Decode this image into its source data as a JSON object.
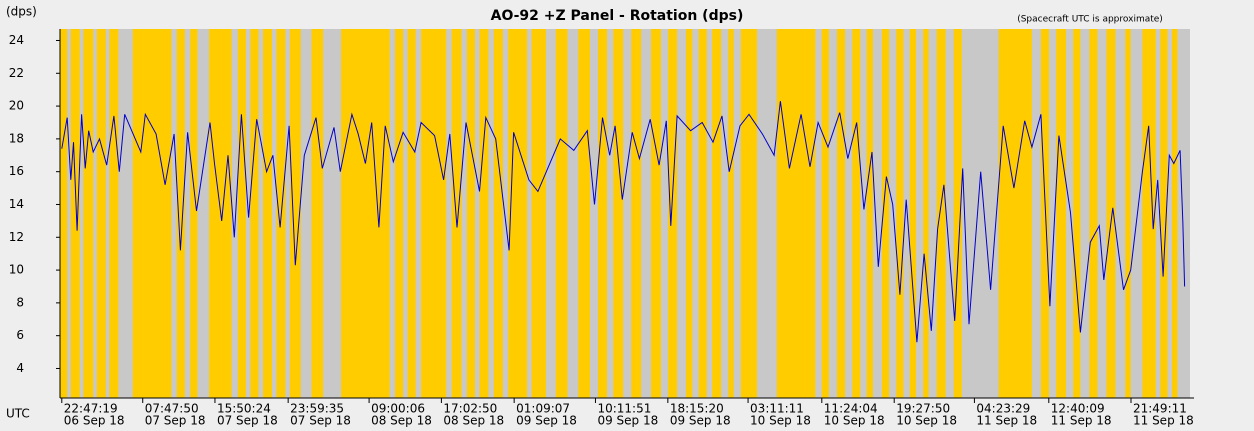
{
  "chart_data": {
    "type": "line",
    "title": "AO-92 +Z Panel - Rotation (dps)",
    "note": "(Spacecraft UTC is approximate)",
    "y_label": "(dps)",
    "x_label": "UTC",
    "background_color": "#c8c8c8",
    "bands": {
      "color": "#ffcc00",
      "intervals": [
        [
          -0.2,
          0.6
        ],
        [
          1.0,
          2.0
        ],
        [
          2.4,
          3.5
        ],
        [
          3.9,
          4.9
        ],
        [
          5.3,
          6.3
        ],
        [
          7.9,
          12.2
        ],
        [
          12.8,
          13.7
        ],
        [
          14.3,
          15.1
        ],
        [
          16.4,
          18.9
        ],
        [
          19.6,
          20.5
        ],
        [
          21.0,
          21.9
        ],
        [
          22.4,
          23.4
        ],
        [
          23.9,
          24.9
        ],
        [
          25.4,
          26.6
        ],
        [
          27.8,
          29.1
        ],
        [
          31.1,
          36.5
        ],
        [
          37.1,
          38.0
        ],
        [
          38.5,
          39.4
        ],
        [
          40.0,
          42.8
        ],
        [
          43.4,
          44.5
        ],
        [
          45.1,
          46.0
        ],
        [
          46.5,
          47.5
        ],
        [
          48.1,
          49.1
        ],
        [
          49.7,
          51.8
        ],
        [
          52.3,
          53.9
        ],
        [
          55.0,
          56.3
        ],
        [
          57.5,
          58.8
        ],
        [
          59.7,
          60.7
        ],
        [
          61.4,
          62.5
        ],
        [
          63.4,
          64.5
        ],
        [
          65.6,
          66.7
        ],
        [
          67.5,
          68.5
        ],
        [
          69.5,
          70.2
        ],
        [
          70.9,
          71.8
        ],
        [
          72.4,
          73.4
        ],
        [
          74.2,
          74.8
        ],
        [
          75.6,
          77.4
        ],
        [
          79.6,
          83.9
        ],
        [
          84.6,
          85.4
        ],
        [
          86.3,
          87.2
        ],
        [
          88.0,
          88.9
        ],
        [
          89.6,
          90.3
        ],
        [
          91.3,
          92.1
        ],
        [
          92.9,
          93.7
        ],
        [
          94.4,
          95.1
        ],
        [
          95.9,
          96.5
        ],
        [
          97.4,
          98.4
        ],
        [
          99.3,
          100.2
        ],
        [
          104.3,
          108.0
        ],
        [
          109.0,
          109.9
        ],
        [
          110.7,
          111.8
        ],
        [
          112.6,
          113.4
        ],
        [
          114.4,
          115.3
        ],
        [
          116.3,
          117.3
        ],
        [
          118.4,
          119.0
        ],
        [
          120.3,
          121.8
        ],
        [
          122.3,
          123.1
        ],
        [
          123.6,
          124.2
        ]
      ]
    },
    "color": "#0000cc",
    "x": [
      0,
      0.6,
      1.0,
      1.3,
      1.7,
      2.2,
      2.6,
      3.0,
      3.5,
      4.2,
      5.0,
      5.8,
      6.4,
      7.0,
      8.8,
      9.3,
      10.5,
      11.5,
      12.5,
      13.2,
      14.0,
      15.0,
      16.5,
      17.0,
      17.8,
      18.5,
      19.2,
      20.0,
      20.8,
      21.7,
      22.8,
      23.5,
      24.3,
      25.3,
      26.0,
      27.0,
      28.3,
      29.0,
      30.3,
      31.0,
      32.3,
      33.0,
      33.8,
      34.5,
      35.3,
      36.0,
      36.9,
      38.0,
      39.3,
      40.0,
      41.5,
      42.5,
      43.2,
      44.0,
      45.0,
      46.5,
      47.2,
      48.3,
      49.8,
      50.3,
      52.0,
      53.0,
      55.5,
      57.0,
      58.5,
      59.3,
      60.2,
      61.0,
      61.6,
      62.4,
      63.5,
      64.3,
      65.5,
      66.5,
      67.3,
      67.8,
      68.5,
      70.0,
      71.3,
      72.5,
      73.5,
      74.3,
      75.5,
      76.5,
      78.0,
      79.3,
      80.0,
      81.0,
      82.3,
      83.3,
      84.2,
      85.3,
      86.6,
      87.5,
      88.5,
      89.3,
      90.2,
      90.9,
      91.8,
      92.5,
      93.3,
      94.0,
      95.2,
      96.0,
      96.8,
      97.5,
      98.2,
      99.4,
      100.3,
      101.0,
      102.3,
      103.4,
      104.8,
      106.0,
      107.2,
      108.0,
      109.0,
      110.0,
      111.0,
      112.3,
      113.4,
      114.5,
      115.5,
      116.0,
      117.0,
      118.2,
      119.0,
      120.3,
      121.0,
      121.5,
      122.0,
      122.6,
      123.3,
      123.8,
      124.5,
      124.8,
      125.0
    ],
    "values": [
      17.4,
      19.3,
      15.5,
      17.8,
      12.4,
      19.5,
      16.2,
      18.5,
      17.2,
      18.0,
      16.4,
      19.4,
      16.0,
      19.5,
      17.2,
      19.5,
      18.3,
      15.2,
      18.3,
      11.2,
      18.4,
      13.6,
      19.0,
      16.5,
      13.0,
      17.0,
      12.0,
      19.5,
      13.2,
      19.2,
      16.0,
      17.0,
      12.6,
      18.8,
      10.3,
      17.0,
      19.3,
      16.2,
      18.7,
      16.0,
      19.5,
      18.3,
      16.5,
      19.0,
      12.6,
      18.8,
      16.6,
      18.4,
      17.2,
      19.0,
      18.2,
      15.5,
      18.3,
      12.6,
      19.0,
      14.8,
      19.3,
      18.0,
      11.2,
      18.4,
      15.5,
      14.8,
      18.0,
      17.3,
      18.5,
      14.0,
      19.3,
      17.0,
      18.8,
      14.3,
      18.4,
      16.8,
      19.2,
      16.4,
      19.1,
      12.7,
      19.4,
      18.5,
      19.0,
      17.8,
      19.4,
      16.0,
      18.8,
      19.5,
      18.3,
      17.0,
      20.3,
      16.2,
      19.5,
      16.3,
      19.0,
      17.5,
      19.6,
      16.8,
      19.0,
      13.7,
      17.2,
      10.2,
      15.7,
      14.0,
      8.5,
      14.3,
      5.6,
      11.0,
      6.3,
      12.5,
      15.2,
      6.9,
      16.2,
      6.7,
      16.0,
      8.8,
      18.8,
      15.0,
      19.1,
      17.5,
      19.5,
      7.8,
      18.2,
      13.5,
      6.2,
      11.7,
      12.7,
      9.4,
      13.8,
      8.8,
      10.0,
      16.0,
      18.8,
      12.5,
      15.5,
      9.6,
      17.0,
      16.5,
      17.3,
      13.0,
      9.0
    ],
    "xlim": [
      -0.2,
      125.6
    ],
    "ylim": [
      2.2,
      24.7
    ],
    "yticks": [
      4,
      6,
      8,
      10,
      12,
      14,
      16,
      18,
      20,
      22,
      24
    ],
    "xticks": [
      {
        "value": 0,
        "label": "22:47:19"
      },
      {
        "value": 9.01,
        "label": "07:47:50"
      },
      {
        "value": 17.05,
        "label": "15:50:24"
      },
      {
        "value": 25.2,
        "label": "23:59:35"
      },
      {
        "value": 34.21,
        "label": "09:00:06"
      },
      {
        "value": 42.26,
        "label": "17:02:50"
      },
      {
        "value": 50.36,
        "label": "01:09:07"
      },
      {
        "value": 59.41,
        "label": "10:11:51"
      },
      {
        "value": 67.47,
        "label": "18:15:20"
      },
      {
        "value": 76.4,
        "label": "03:11:11"
      },
      {
        "value": 84.61,
        "label": "11:24:04"
      },
      {
        "value": 92.67,
        "label": "19:27:50"
      },
      {
        "value": 101.6,
        "label": "04:23:29"
      },
      {
        "value": 109.88,
        "label": "12:40:09"
      },
      {
        "value": 119.03,
        "label": "21:49:11"
      }
    ],
    "xtick_dates": [
      "06 Sep 18",
      "07 Sep 18",
      "07 Sep 18",
      "07 Sep 18",
      "08 Sep 18",
      "08 Sep 18",
      "09 Sep 18",
      "09 Sep 18",
      "09 Sep 18",
      "10 Sep 18",
      "10 Sep 18",
      "10 Sep 18",
      "11 Sep 18",
      "11 Sep 18",
      "11 Sep 18"
    ]
  }
}
